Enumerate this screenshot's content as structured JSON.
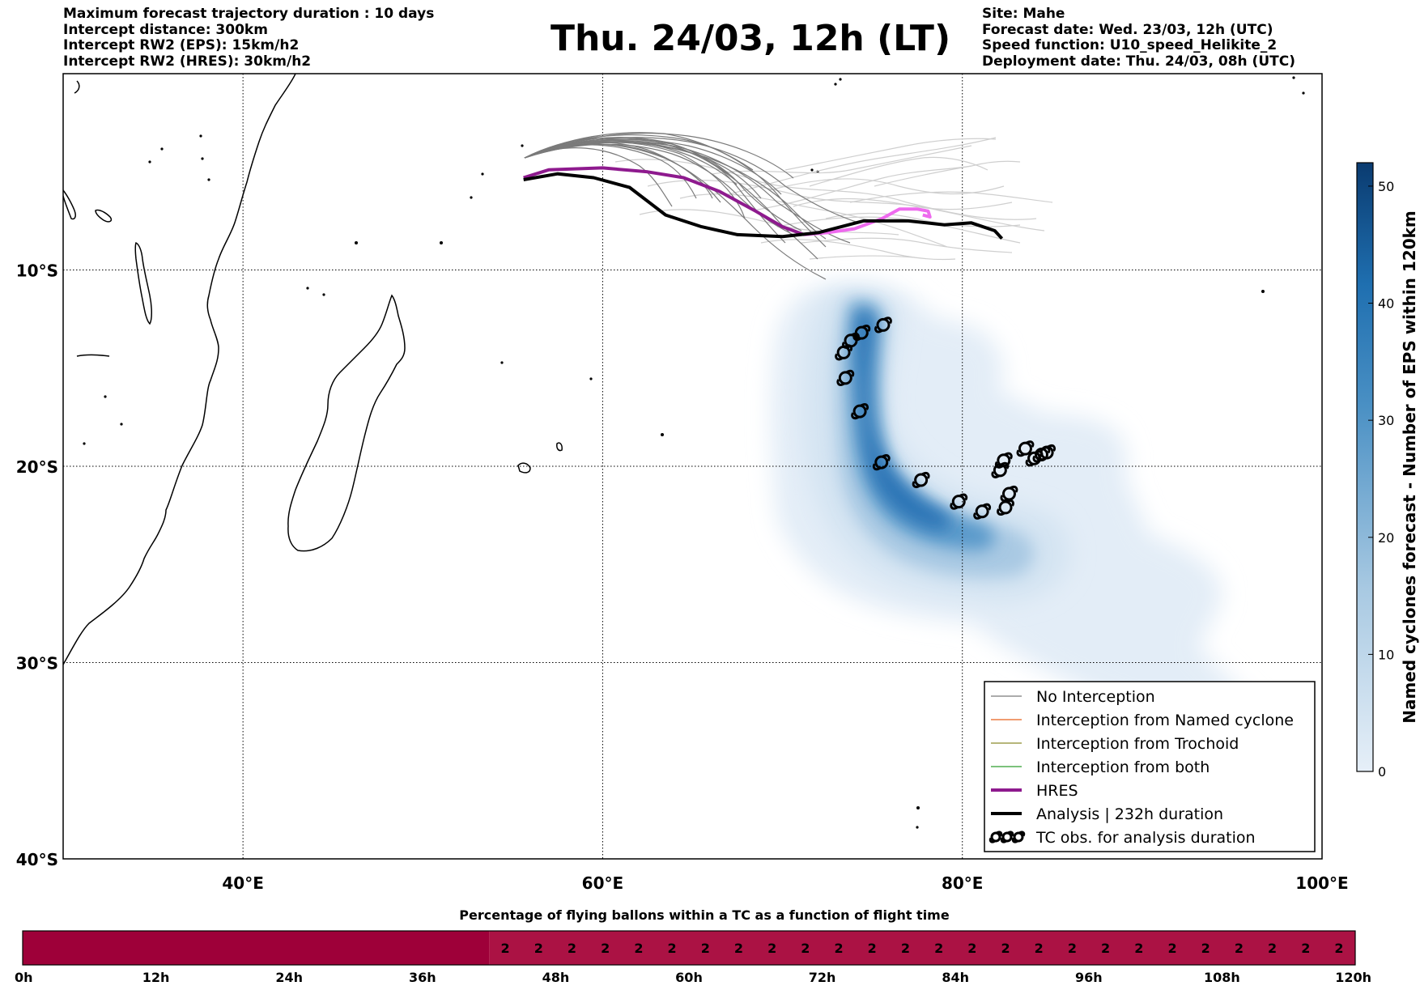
{
  "header_left": [
    "Maximum forecast trajectory duration : 10 days",
    "Intercept distance: 300km",
    "Intercept RW2 (EPS):  15km/h2",
    "Intercept RW2 (HRES): 30km/h2"
  ],
  "header_right": [
    "Site: Mahe",
    "Forecast date: Wed. 23/03, 12h (UTC)",
    "Speed function: U10_speed_Helikite_2",
    "Deployment date: Thu. 24/03, 08h (UTC)"
  ],
  "title": "Thu. 24/03, 12h (LT)",
  "map": {
    "lon_range": [
      30,
      100
    ],
    "lat_range": [
      -40,
      0
    ],
    "lon_ticks": [
      {
        "value": 40,
        "label": "40°E"
      },
      {
        "value": 60,
        "label": "60°E"
      },
      {
        "value": 80,
        "label": "80°E"
      },
      {
        "value": 100,
        "label": "100°E"
      }
    ],
    "lat_ticks": [
      {
        "value": -10,
        "label": "10°S"
      },
      {
        "value": -20,
        "label": "20°S"
      },
      {
        "value": -30,
        "label": "30°S"
      },
      {
        "value": -40,
        "label": "40°S"
      }
    ],
    "grid": true,
    "colors": {
      "no_interception": "#7a7a7a",
      "named_cyclone": "#e8601c",
      "trochoid": "#8b8b2a",
      "both": "#2e9e2e",
      "hres": "#8e1a8e",
      "hres_late": "#ee6aee",
      "analysis": "#000000",
      "density": "#1f6fb0"
    },
    "tc_observations": [
      [
        75.6,
        -12.8
      ],
      [
        74.4,
        -13.2
      ],
      [
        73.8,
        -13.6
      ],
      [
        73.4,
        -14.2
      ],
      [
        73.5,
        -15.5
      ],
      [
        74.3,
        -17.2
      ],
      [
        75.5,
        -19.8
      ],
      [
        77.7,
        -20.7
      ],
      [
        79.8,
        -21.8
      ],
      [
        81.1,
        -22.3
      ],
      [
        82.4,
        -22.1
      ],
      [
        82.6,
        -21.4
      ],
      [
        82.1,
        -20.2
      ],
      [
        82.3,
        -19.7
      ],
      [
        83.5,
        -19.1
      ],
      [
        84.0,
        -19.6
      ],
      [
        84.4,
        -19.4
      ],
      [
        84.7,
        -19.3
      ]
    ],
    "analysis_track": [
      [
        55.6,
        -5.4
      ],
      [
        57.5,
        -5.1
      ],
      [
        59.5,
        -5.3
      ],
      [
        61.5,
        -5.8
      ],
      [
        63.5,
        -7.2
      ],
      [
        65.5,
        -7.8
      ],
      [
        67.5,
        -8.2
      ],
      [
        70.0,
        -8.3
      ],
      [
        72.0,
        -8.1
      ],
      [
        74.5,
        -7.5
      ],
      [
        77.0,
        -7.5
      ],
      [
        79.0,
        -7.7
      ],
      [
        80.5,
        -7.6
      ],
      [
        81.8,
        -8.0
      ],
      [
        82.2,
        -8.4
      ]
    ],
    "hres_track": [
      [
        55.6,
        -5.3
      ],
      [
        57.0,
        -4.9
      ],
      [
        60.0,
        -4.8
      ],
      [
        62.5,
        -5.0
      ],
      [
        64.5,
        -5.3
      ],
      [
        66.5,
        -6.0
      ],
      [
        68.5,
        -7.0
      ],
      [
        70.0,
        -7.8
      ],
      [
        71.2,
        -8.2
      ]
    ],
    "hres_late_track": [
      [
        71.2,
        -8.2
      ],
      [
        72.5,
        -8.1
      ],
      [
        74.0,
        -7.9
      ],
      [
        75.5,
        -7.4
      ],
      [
        76.5,
        -6.9
      ],
      [
        77.5,
        -6.9
      ],
      [
        78.1,
        -7.0
      ],
      [
        78.2,
        -7.3
      ],
      [
        77.8,
        -7.2
      ]
    ],
    "density_colorbar": {
      "label": "Named cyclones forecast - Number of EPS within 120km",
      "range": [
        0,
        52
      ],
      "ticks": [
        0,
        10,
        20,
        30,
        40,
        50
      ]
    }
  },
  "legend": [
    {
      "label": "No Interception",
      "color": "#7a7a7a",
      "width": 1.2
    },
    {
      "label": "Interception from Named cyclone",
      "color": "#e8601c",
      "width": 1.2
    },
    {
      "label": "Interception from Trochoid",
      "color": "#8b8b2a",
      "width": 1.2
    },
    {
      "label": "Interception from both",
      "color": "#2e9e2e",
      "width": 1.2
    },
    {
      "label": "HRES",
      "color": "#8e1a8e",
      "width": 4
    },
    {
      "label": "Analysis | 232h duration",
      "color": "#000000",
      "width": 4
    },
    {
      "label": "TC obs. for analysis duration",
      "symbol": "tc"
    }
  ],
  "bottom_bar": {
    "title": "Percentage of flying ballons within a TC as a function of flight time",
    "hours_range": [
      0,
      120
    ],
    "ticks": [
      "0h",
      "12h",
      "24h",
      "36h",
      "48h",
      "60h",
      "72h",
      "84h",
      "96h",
      "108h",
      "120h"
    ],
    "low_end_hour": 42,
    "value_label": "2",
    "value_count": 26,
    "colors": {
      "full": "#9e0039",
      "low": "#ab1244"
    }
  }
}
